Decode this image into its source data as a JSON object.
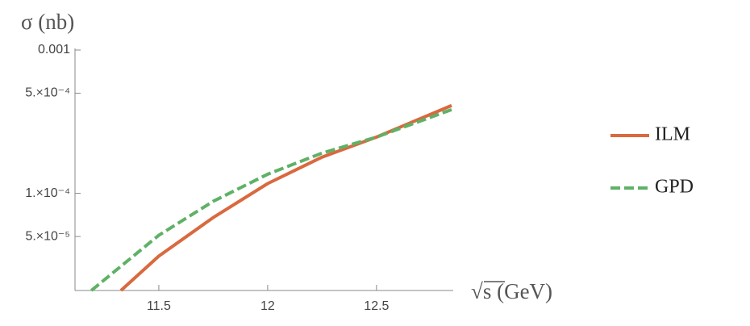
{
  "chart_data": {
    "type": "line",
    "y_label": "σ (nb)",
    "x_label": "√s  (GeV)",
    "ylog": true,
    "xlim": [
      11.115,
      12.845
    ],
    "xticks": [
      11.5,
      12.0,
      12.5
    ],
    "ylim": [
      2.1e-05,
      0.001
    ],
    "yticks": [
      0.001,
      {
        "value": 0.0005,
        "label": "5.×10⁻⁴"
      },
      {
        "value": 0.0001,
        "label": "1.×10⁻⁴"
      },
      {
        "value": 5e-05,
        "label": "5.×10⁻⁵"
      }
    ],
    "series": [
      {
        "name": "ILM",
        "color": "#d9693e",
        "dash": false,
        "x": [
          11.326,
          11.5,
          11.75,
          12.0,
          12.25,
          12.5,
          12.845
        ],
        "values": [
          2.1e-05,
          3.65e-05,
          6.78e-05,
          0.000117,
          0.000179,
          0.000247,
          0.00041
        ]
      },
      {
        "name": "GPD",
        "color": "#5fb166",
        "dash": true,
        "x": [
          11.19,
          11.5,
          11.75,
          12.0,
          12.25,
          12.5,
          12.845
        ],
        "values": [
          2.1e-05,
          5.1e-05,
          8.8e-05,
          0.000136,
          0.000191,
          0.000247,
          0.000384
        ]
      }
    ]
  }
}
